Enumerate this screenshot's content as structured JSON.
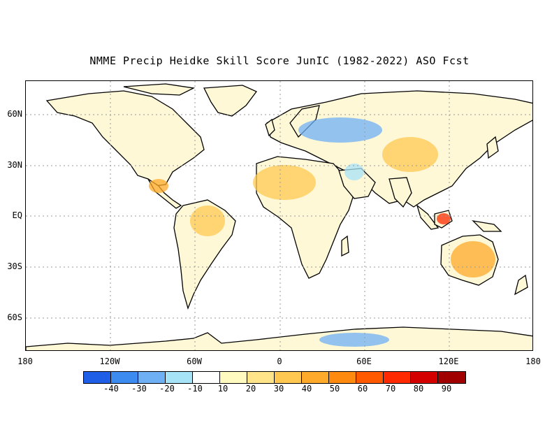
{
  "title": "NMME Precip Heidke Skill Score JunIC (1982-2022) ASO Fcst",
  "map": {
    "y_tick_labels": [
      "60N",
      "30N",
      "EQ",
      "30S",
      "60S"
    ],
    "x_tick_labels": [
      "180",
      "120W",
      "60W",
      "0",
      "60E",
      "120E",
      "180"
    ],
    "land_fill": "#fff8d6",
    "coast_color": "#000000",
    "grid_color": "#999999",
    "skill_patches": [
      {
        "region": "Borneo / Malaysia",
        "level": "70"
      },
      {
        "region": "Australia",
        "level": "40"
      },
      {
        "region": "Amazon / northern South America",
        "level": "30"
      },
      {
        "region": "Central Asia",
        "level": "30"
      },
      {
        "region": "Sahara / North Africa",
        "level": "30"
      },
      {
        "region": "Central America",
        "level": "40"
      },
      {
        "region": "Eastern Europe / Russia",
        "level": "-20"
      },
      {
        "region": "Antarctica (East)",
        "level": "-20"
      },
      {
        "region": "Middle East",
        "level": "-10"
      }
    ]
  },
  "colorbar": {
    "colors": [
      "#1f5ee6",
      "#3b8bf0",
      "#6fb0f5",
      "#a7e3f7",
      "#ffffff",
      "#fffbc0",
      "#ffe48a",
      "#ffc850",
      "#ffaa2a",
      "#ff8a10",
      "#ff5a00",
      "#ff2a00",
      "#d40000",
      "#a00000"
    ],
    "labels": [
      "-40",
      "-30",
      "-20",
      "-10",
      "10",
      "20",
      "30",
      "40",
      "50",
      "60",
      "70",
      "80",
      "90"
    ]
  }
}
